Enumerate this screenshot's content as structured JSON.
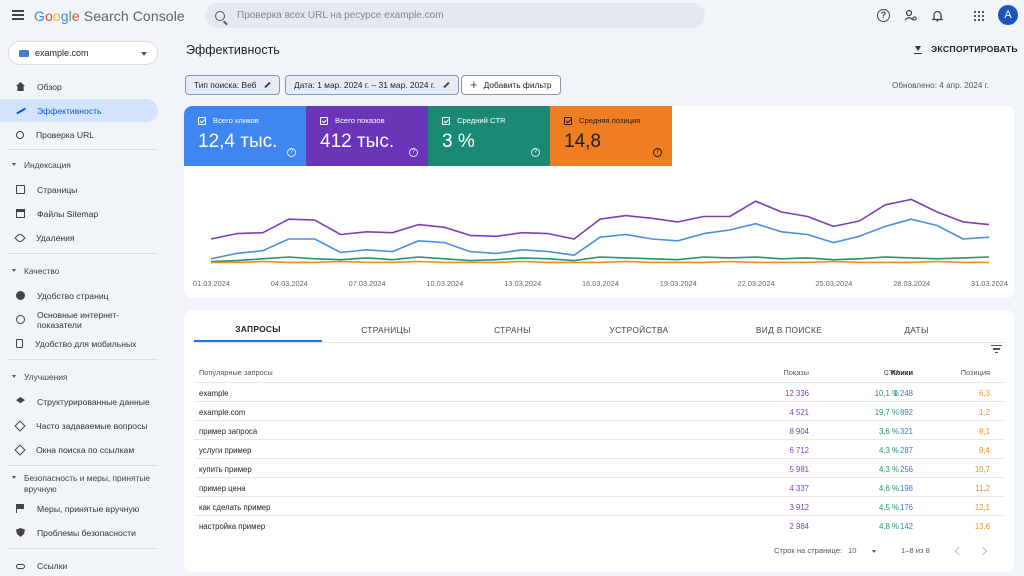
{
  "app": {
    "logo": {
      "g": "G",
      "o1": "o",
      "o2": "o",
      "g2": "g",
      "l": "l",
      "e": "e",
      "suffix": " Search Console"
    },
    "search_placeholder": "Проверка всех URL на ресурсе example.com",
    "avatar_letter": "A"
  },
  "sidebar": {
    "property": "example.com",
    "items": {
      "overview": "Обзор",
      "performance": "Эффективность",
      "url_inspection": "Проверка URL",
      "section_indexing": "Индексация",
      "pages": "Страницы",
      "sitemaps": "Файлы Sitemap",
      "removals": "Удаления",
      "section_quality": "Качество",
      "page_experience": "Удобство страниц",
      "core_web_vitals": "Основные интернет-показатели",
      "mobile": "Удобство для мобильных",
      "section_enhancements": "Улучшения",
      "structured_data": "Структурированные данные",
      "faq": "Часто задаваемые вопросы",
      "sitelinks_search": "Окна поиска по ссылкам",
      "section_security": "Безопасность и меры, принятые вручную",
      "manual_actions": "Меры, принятые вручную",
      "security_issues": "Проблемы безопасности",
      "links": "Ссылки"
    }
  },
  "header": {
    "title": "Эффективность",
    "export": "ЭКСПОРТИРОВАТЬ",
    "filter_search_type": "Тип поиска: Веб",
    "filter_date": "Дата: 1 мар. 2024 г. – 31 мар. 2024 г.",
    "add_filter": "Добавить фильтр",
    "updated": "Обновлено: 4 апр. 2024 г."
  },
  "metrics": {
    "clicks": {
      "label": "Всего кликов",
      "value": "12,4 тыс.",
      "color": "#3f86f0"
    },
    "impressions": {
      "label": "Всего показов",
      "value": "412 тыс.",
      "color": "#6a35b6"
    },
    "ctr": {
      "label": "Средний CTR",
      "value": "3 %",
      "color": "#1b8a74"
    },
    "position": {
      "label": "Средняя позиция",
      "value": "14,8",
      "color": "#ef7d22"
    }
  },
  "chart_data": {
    "type": "line",
    "title": "",
    "x": [
      "01.03.2024",
      "02.03.2024",
      "03.03.2024",
      "04.03.2024",
      "05.03.2024",
      "06.03.2024",
      "07.03.2024",
      "08.03.2024",
      "09.03.2024",
      "10.03.2024",
      "11.03.2024",
      "12.03.2024",
      "13.03.2024",
      "14.03.2024",
      "15.03.2024",
      "16.03.2024",
      "17.03.2024",
      "18.03.2024",
      "19.03.2024",
      "20.03.2024",
      "21.03.2024",
      "22.03.2024",
      "23.03.2024",
      "24.03.2024",
      "25.03.2024",
      "26.03.2024",
      "27.03.2024",
      "28.03.2024",
      "29.03.2024",
      "30.03.2024",
      "31.03.2024"
    ],
    "tick_labels": [
      "01.03.2024",
      "04.03.2024",
      "07.03.2024",
      "10.03.2024",
      "13.03.2024",
      "16.03.2024",
      "19.03.2024",
      "22.03.2024",
      "25.03.2024",
      "28.03.2024",
      "31.03.2024"
    ],
    "series": [
      {
        "name": "Всего показов",
        "color": "#7b3fb7",
        "values": [
          0.3,
          0.36,
          0.37,
          0.52,
          0.51,
          0.35,
          0.38,
          0.37,
          0.46,
          0.43,
          0.34,
          0.33,
          0.37,
          0.36,
          0.3,
          0.52,
          0.56,
          0.53,
          0.49,
          0.55,
          0.55,
          0.72,
          0.6,
          0.55,
          0.44,
          0.5,
          0.68,
          0.74,
          0.6,
          0.49,
          0.46
        ]
      },
      {
        "name": "Всего кликов",
        "color": "#4a8fe0",
        "values": [
          0.08,
          0.14,
          0.17,
          0.3,
          0.3,
          0.15,
          0.18,
          0.16,
          0.28,
          0.26,
          0.16,
          0.14,
          0.18,
          0.16,
          0.12,
          0.32,
          0.35,
          0.3,
          0.28,
          0.36,
          0.4,
          0.47,
          0.38,
          0.35,
          0.26,
          0.33,
          0.44,
          0.52,
          0.45,
          0.3,
          0.32
        ]
      },
      {
        "name": "Средний CTR",
        "color": "#26936f",
        "values": [
          0.05,
          0.06,
          0.08,
          0.1,
          0.08,
          0.07,
          0.09,
          0.07,
          0.1,
          0.08,
          0.06,
          0.07,
          0.09,
          0.08,
          0.06,
          0.1,
          0.09,
          0.08,
          0.07,
          0.1,
          0.09,
          0.1,
          0.08,
          0.09,
          0.07,
          0.08,
          0.1,
          0.09,
          0.08,
          0.09,
          0.1
        ]
      },
      {
        "name": "Средняя позиция",
        "color": "#ef8a2b",
        "values": [
          0.04,
          0.04,
          0.05,
          0.04,
          0.04,
          0.05,
          0.04,
          0.04,
          0.05,
          0.04,
          0.04,
          0.04,
          0.05,
          0.04,
          0.04,
          0.04,
          0.05,
          0.04,
          0.04,
          0.04,
          0.05,
          0.04,
          0.04,
          0.04,
          0.05,
          0.04,
          0.04,
          0.04,
          0.05,
          0.04,
          0.04
        ]
      }
    ]
  },
  "tabs": [
    "ЗАПРОСЫ",
    "СТРАНИЦЫ",
    "СТРАНЫ",
    "УСТРОЙСТВА",
    "ВИД В ПОИСКЕ",
    "ДАТЫ"
  ],
  "table": {
    "headers": {
      "query": "Популярные запросы",
      "clicks": "Клики",
      "impressions": "Показы",
      "ctr": "CTR",
      "position": "Позиция"
    },
    "rows": [
      {
        "query": "example",
        "clicks": "1 248",
        "impressions": "12 336",
        "ctr": "10,1 %",
        "position": "6,3"
      },
      {
        "query": "example.com",
        "clicks": "892",
        "impressions": "4 521",
        "ctr": "19,7 %",
        "position": "1,2"
      },
      {
        "query": "пример запроса",
        "clicks": "321",
        "impressions": "8 904",
        "ctr": "3,6 %",
        "position": "8,1"
      },
      {
        "query": "услуги пример",
        "clicks": "287",
        "impressions": "6 712",
        "ctr": "4,3 %",
        "position": "9,4"
      },
      {
        "query": "купить пример",
        "clicks": "256",
        "impressions": "5 981",
        "ctr": "4,3 %",
        "position": "10,7"
      },
      {
        "query": "пример цена",
        "clicks": "198",
        "impressions": "4 337",
        "ctr": "4,6 %",
        "position": "11,2"
      },
      {
        "query": "как сделать пример",
        "clicks": "176",
        "impressions": "3 912",
        "ctr": "4,5 %",
        "position": "12,1"
      },
      {
        "query": "настройка пример",
        "clicks": "142",
        "impressions": "2 984",
        "ctr": "4,8 %",
        "position": "13,6"
      }
    ],
    "pager": {
      "rows_per_page_label": "Строк на странице:",
      "rows_per_page": "10",
      "range": "1–8 из 8"
    }
  }
}
